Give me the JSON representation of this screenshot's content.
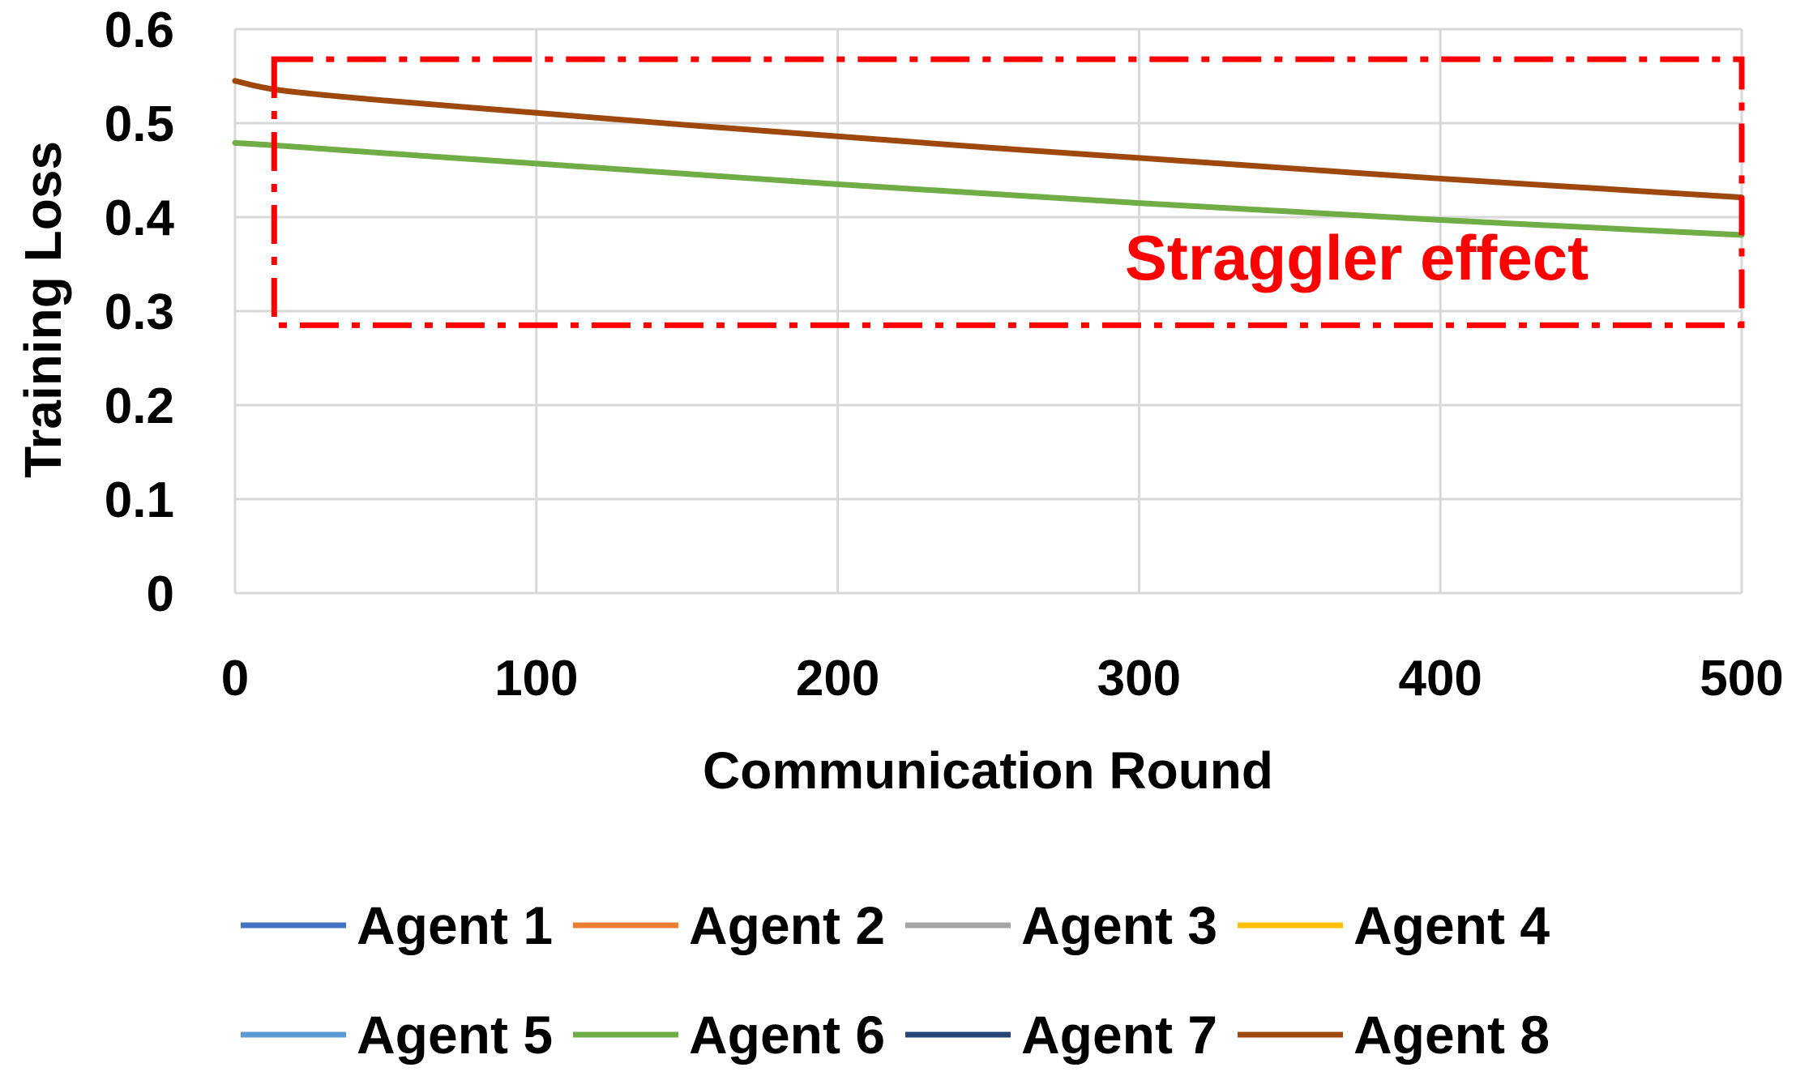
{
  "chart_data": {
    "type": "line",
    "xlabel": "Communication Round",
    "ylabel": "Training Loss",
    "xlim": [
      0,
      500
    ],
    "ylim": [
      0,
      0.6
    ],
    "xticks": [
      0,
      100,
      200,
      300,
      400,
      500
    ],
    "xtick_labels": [
      "0",
      "100",
      "200",
      "300",
      "400",
      "500"
    ],
    "yticks": [
      0,
      0.1,
      0.2,
      0.3,
      0.4,
      0.5,
      0.6
    ],
    "ytick_labels": [
      "0",
      "0.1",
      "0.2",
      "0.3",
      "0.4",
      "0.5",
      "0.6"
    ],
    "grid": true,
    "legend_position": "bottom",
    "x": [
      0,
      15,
      50,
      100,
      150,
      200,
      250,
      300,
      350,
      400,
      450,
      500
    ],
    "series": [
      {
        "name": "Agent 1",
        "color": "#4472C4",
        "values": [
          null,
          null,
          null,
          null,
          null,
          null,
          null,
          null,
          null,
          null,
          null,
          null
        ]
      },
      {
        "name": "Agent 2",
        "color": "#ED7D31",
        "values": [
          null,
          null,
          null,
          null,
          null,
          null,
          null,
          null,
          null,
          null,
          null,
          null
        ]
      },
      {
        "name": "Agent 3",
        "color": "#A5A5A5",
        "values": [
          null,
          null,
          null,
          null,
          null,
          null,
          null,
          null,
          null,
          null,
          null,
          null
        ]
      },
      {
        "name": "Agent 4",
        "color": "#FFC000",
        "values": [
          null,
          null,
          null,
          null,
          null,
          null,
          null,
          null,
          null,
          null,
          null,
          null
        ]
      },
      {
        "name": "Agent 5",
        "color": "#5B9BD5",
        "values": [
          null,
          null,
          null,
          null,
          null,
          null,
          null,
          null,
          null,
          null,
          null,
          null
        ]
      },
      {
        "name": "Agent 6",
        "color": "#70AD47",
        "values": [
          0.479,
          0.476,
          0.468,
          0.457,
          0.446,
          0.435,
          0.425,
          0.415,
          0.406,
          0.397,
          0.389,
          0.381
        ]
      },
      {
        "name": "Agent 7",
        "color": "#264478",
        "values": [
          null,
          null,
          null,
          null,
          null,
          null,
          null,
          null,
          null,
          null,
          null,
          null
        ]
      },
      {
        "name": "Agent 8",
        "color": "#9E480E",
        "values": [
          0.545,
          0.535,
          0.524,
          0.511,
          0.498,
          0.486,
          0.474,
          0.463,
          0.452,
          0.441,
          0.431,
          0.421
        ]
      }
    ],
    "annotation": {
      "text": "Straggler effect",
      "color": "#FF0000",
      "box_x_range": [
        13,
        500
      ],
      "box_y_range": [
        0.285,
        0.568
      ]
    }
  }
}
